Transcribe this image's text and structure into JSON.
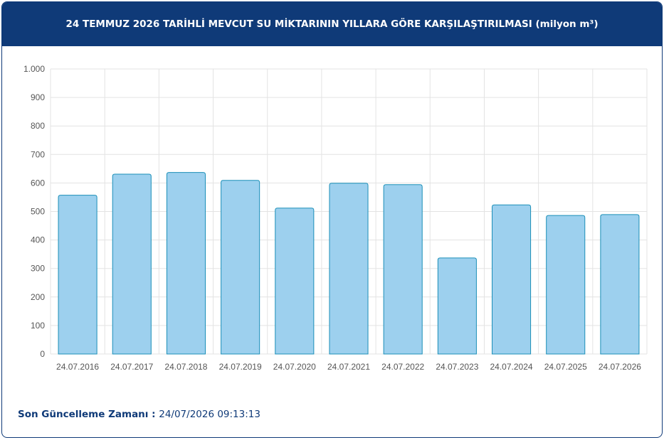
{
  "header": {
    "title": "24 TEMMUZ 2026 TARİHLİ MEVCUT SU MİKTARININ YILLARA GÖRE KARŞILAŞTIRILMASI (milyon m³)"
  },
  "footer": {
    "label": "Son Güncelleme Zamanı",
    "separator": " : ",
    "value": "24/07/2026 09:13:13"
  },
  "colors": {
    "header_bg": "#0f3a78",
    "bar_fill": "#9dd0ee",
    "bar_stroke": "#1b8fb8",
    "grid": "#e3e3e3",
    "tick_text": "#555555"
  },
  "chart_data": {
    "type": "bar",
    "title": "24 TEMMUZ 2026 TARİHLİ MEVCUT SU MİKTARININ YILLARA GÖRE KARŞILAŞTIRILMASI (milyon m³)",
    "categories": [
      "24.07.2016",
      "24.07.2017",
      "24.07.2018",
      "24.07.2019",
      "24.07.2020",
      "24.07.2021",
      "24.07.2022",
      "24.07.2023",
      "24.07.2024",
      "24.07.2025",
      "24.07.2026"
    ],
    "values": [
      557,
      631,
      637,
      609,
      512,
      599,
      594,
      337,
      523,
      486,
      489
    ],
    "ylim": [
      0,
      1000
    ],
    "yticks": [
      0,
      100,
      200,
      300,
      400,
      500,
      600,
      700,
      800,
      900,
      1000
    ],
    "ytick_labels": [
      "0",
      "100",
      "200",
      "300",
      "400",
      "500",
      "600",
      "700",
      "800",
      "900",
      "1.000"
    ],
    "xlabel": "",
    "ylabel": "",
    "grid": true,
    "legend": "none"
  }
}
